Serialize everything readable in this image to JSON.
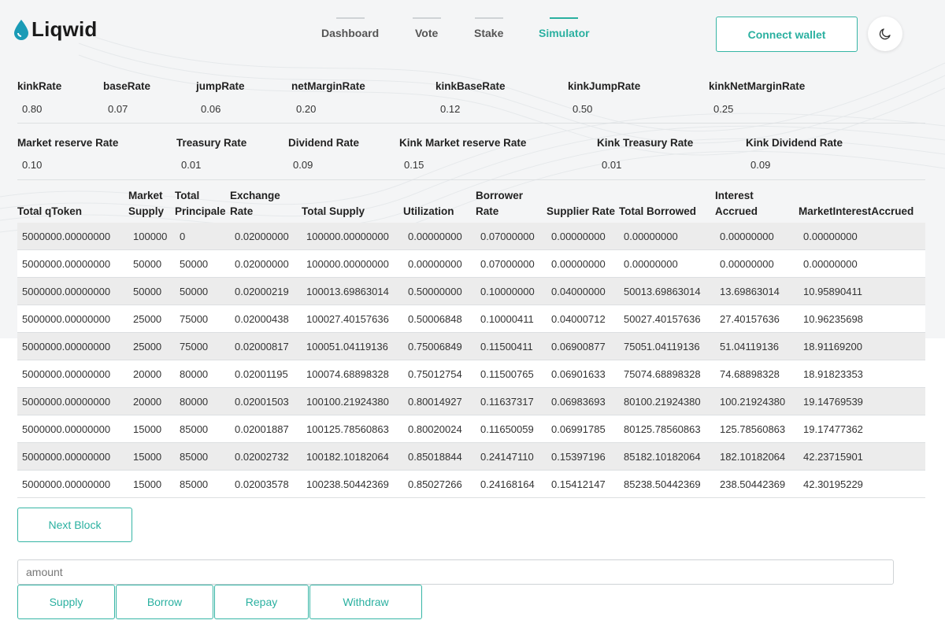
{
  "brand": {
    "name": "Liqwid"
  },
  "nav": {
    "items": [
      {
        "label": "Dashboard"
      },
      {
        "label": "Vote"
      },
      {
        "label": "Stake"
      },
      {
        "label": "Simulator"
      }
    ],
    "active": "Simulator",
    "connect_wallet": "Connect wallet",
    "theme_icon": "moon-icon"
  },
  "params_row1": [
    {
      "label": "kinkRate",
      "value": "0.80"
    },
    {
      "label": "baseRate",
      "value": "0.07"
    },
    {
      "label": "jumpRate",
      "value": "0.06"
    },
    {
      "label": "netMarginRate",
      "value": "0.20"
    },
    {
      "label": "kinkBaseRate",
      "value": "0.12"
    },
    {
      "label": "kinkJumpRate",
      "value": "0.50"
    },
    {
      "label": "kinkNetMarginRate",
      "value": "0.25"
    }
  ],
  "params_row2": [
    {
      "label": "Market reserve Rate",
      "value": "0.10"
    },
    {
      "label": "Treasury Rate",
      "value": "0.01"
    },
    {
      "label": "Dividend Rate",
      "value": "0.09"
    },
    {
      "label": "Kink Market reserve Rate",
      "value": "0.15"
    },
    {
      "label": "Kink Treasury Rate",
      "value": "0.01"
    },
    {
      "label": "Kink Dividend Rate",
      "value": "0.09"
    }
  ],
  "table": {
    "headers": [
      "Total qToken",
      "Market Supply",
      "Total Principale",
      "Exchange Rate",
      "Total Supply",
      "Utilization",
      "Borrower Rate",
      "Supplier Rate",
      "Total Borrowed",
      "Interest Accrued",
      "MarketInterestAccrued"
    ],
    "rows": [
      [
        "5000000.00000000",
        "100000",
        "0",
        "0.02000000",
        "100000.00000000",
        "0.00000000",
        "0.07000000",
        "0.00000000",
        "0.00000000",
        "0.00000000",
        "0.00000000"
      ],
      [
        "5000000.00000000",
        "50000",
        "50000",
        "0.02000000",
        "100000.00000000",
        "0.00000000",
        "0.07000000",
        "0.00000000",
        "0.00000000",
        "0.00000000",
        "0.00000000"
      ],
      [
        "5000000.00000000",
        "50000",
        "50000",
        "0.02000219",
        "100013.69863014",
        "0.50000000",
        "0.10000000",
        "0.04000000",
        "50013.69863014",
        "13.69863014",
        "10.95890411"
      ],
      [
        "5000000.00000000",
        "25000",
        "75000",
        "0.02000438",
        "100027.40157636",
        "0.50006848",
        "0.10000411",
        "0.04000712",
        "50027.40157636",
        "27.40157636",
        "10.96235698"
      ],
      [
        "5000000.00000000",
        "25000",
        "75000",
        "0.02000817",
        "100051.04119136",
        "0.75006849",
        "0.11500411",
        "0.06900877",
        "75051.04119136",
        "51.04119136",
        "18.91169200"
      ],
      [
        "5000000.00000000",
        "20000",
        "80000",
        "0.02001195",
        "100074.68898328",
        "0.75012754",
        "0.11500765",
        "0.06901633",
        "75074.68898328",
        "74.68898328",
        "18.91823353"
      ],
      [
        "5000000.00000000",
        "20000",
        "80000",
        "0.02001503",
        "100100.21924380",
        "0.80014927",
        "0.11637317",
        "0.06983693",
        "80100.21924380",
        "100.21924380",
        "19.14769539"
      ],
      [
        "5000000.00000000",
        "15000",
        "85000",
        "0.02001887",
        "100125.78560863",
        "0.80020024",
        "0.11650059",
        "0.06991785",
        "80125.78560863",
        "125.78560863",
        "19.17477362"
      ],
      [
        "5000000.00000000",
        "15000",
        "85000",
        "0.02002732",
        "100182.10182064",
        "0.85018844",
        "0.24147110",
        "0.15397196",
        "85182.10182064",
        "182.10182064",
        "42.23715901"
      ],
      [
        "5000000.00000000",
        "15000",
        "85000",
        "0.02003578",
        "100238.50442369",
        "0.85027266",
        "0.24168164",
        "0.15412147",
        "85238.50442369",
        "238.50442369",
        "42.30195229"
      ]
    ]
  },
  "controls": {
    "next_block": "Next Block",
    "amount_placeholder": "amount",
    "supply": "Supply",
    "borrow": "Borrow",
    "repay": "Repay",
    "withdraw": "Withdraw"
  },
  "colors": {
    "accent": "#2ab0a0",
    "logo_drop": "#1a9bb6",
    "row_stripe": "#ececec"
  }
}
